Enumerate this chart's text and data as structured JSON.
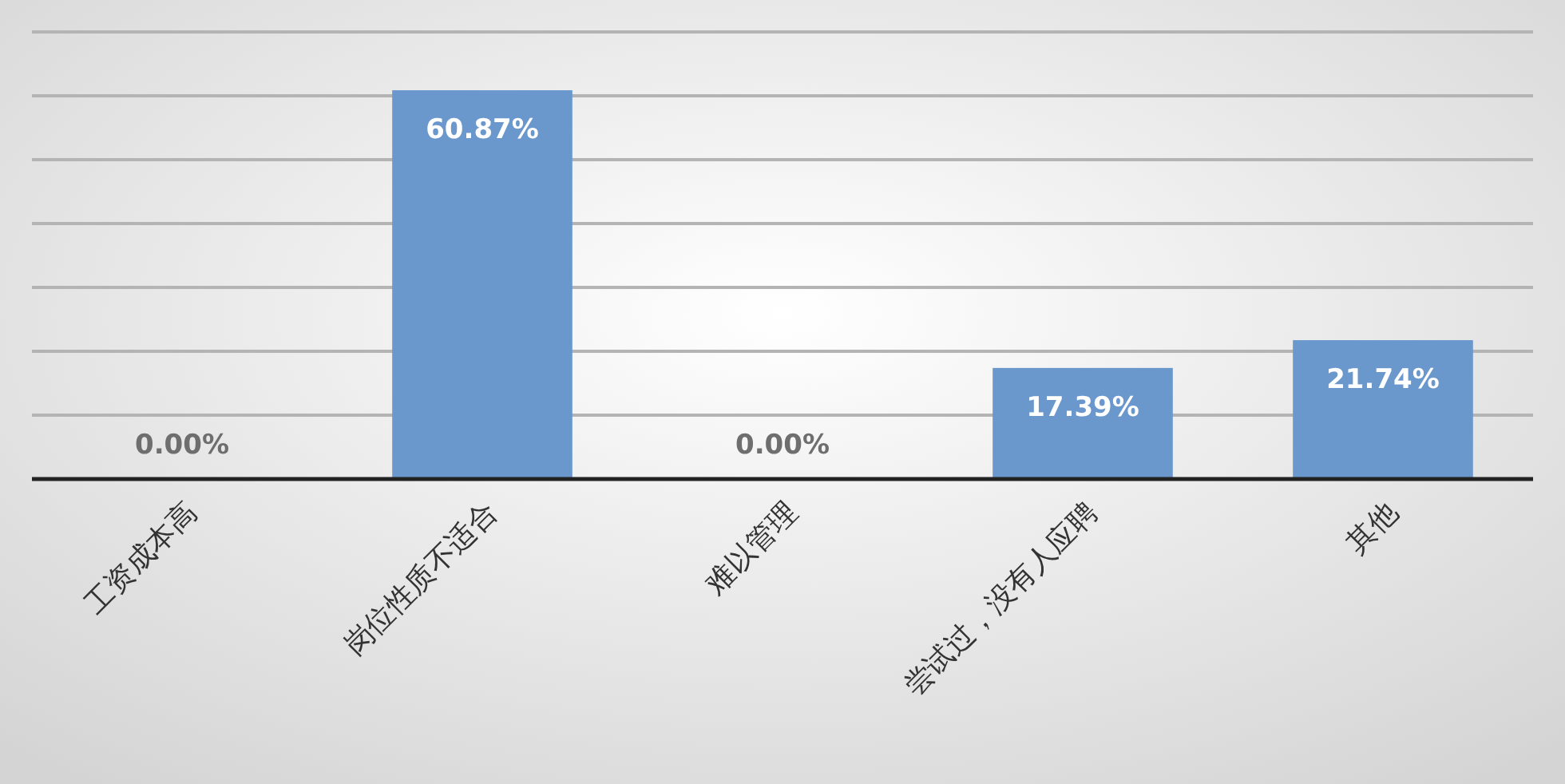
{
  "chart_data": {
    "type": "bar",
    "categories": [
      "工资成本高",
      "岗位性质不适合",
      "难以管理",
      "尝试过，没有人应聘",
      "其他"
    ],
    "values": [
      0,
      60.87,
      0,
      17.39,
      21.74
    ],
    "value_labels": [
      "0.00%",
      "60.87%",
      "0.00%",
      "17.39%",
      "21.74%"
    ],
    "color": "#6a97cc",
    "ylim": [
      0,
      70
    ],
    "yticks": [
      {
        "value": 0,
        "label": null
      },
      {
        "value": 10,
        "label": null
      },
      {
        "value": 20,
        "label": null
      },
      {
        "value": 30,
        "label": null
      },
      {
        "value": 40,
        "label": null
      },
      {
        "value": 50,
        "label": null
      },
      {
        "value": 60,
        "label": null
      },
      {
        "value": 70,
        "label": null
      }
    ],
    "grid": "y"
  }
}
